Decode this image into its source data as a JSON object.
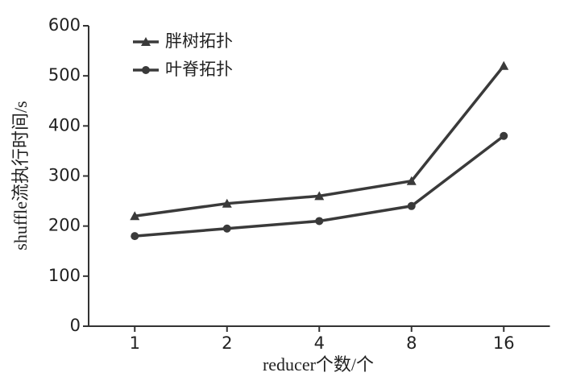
{
  "chart_data": {
    "type": "line",
    "x_label": "reducer个数/个",
    "y_label": "shuffle流执行时间/s",
    "categories": [
      "1",
      "2",
      "4",
      "8",
      "16"
    ],
    "series": [
      {
        "name": "胖树拓扑",
        "color": "#3a3a3a",
        "marker": "triangle",
        "values": [
          220,
          245,
          260,
          290,
          520
        ]
      },
      {
        "name": "叶脊拓扑",
        "color": "#3a3a3a",
        "marker": "circle",
        "values": [
          180,
          195,
          210,
          240,
          380
        ]
      }
    ],
    "ylim": [
      0,
      600
    ],
    "yticks": [
      0,
      100,
      200,
      300,
      400,
      500,
      600
    ],
    "legend": "upper-left"
  }
}
